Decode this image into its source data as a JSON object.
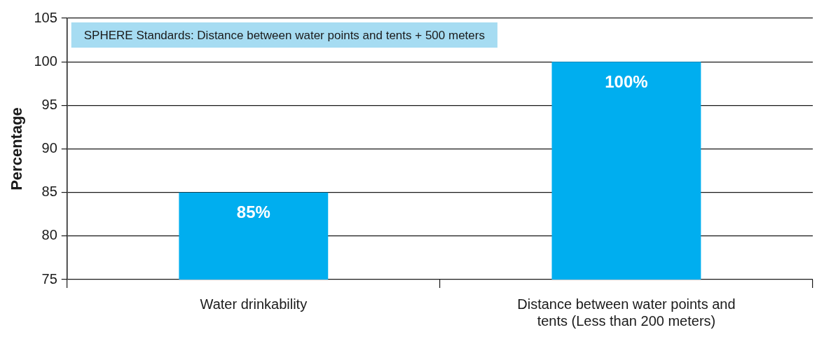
{
  "chart_data": {
    "type": "bar",
    "ylabel": "Percentage",
    "categories": [
      "Water drinkability",
      "Distance between water points and tents (Less than 200 meters)"
    ],
    "values": [
      85,
      100
    ],
    "color": "#00aeef",
    "value_labels": [
      "85%",
      "100%"
    ],
    "ylim": [
      75,
      105
    ],
    "yticks": [
      75,
      80,
      85,
      90,
      95,
      100,
      105
    ],
    "grid": "y",
    "annotations": [
      "SPHERE Standards: Distance between water points and tents + 500 meters"
    ]
  }
}
